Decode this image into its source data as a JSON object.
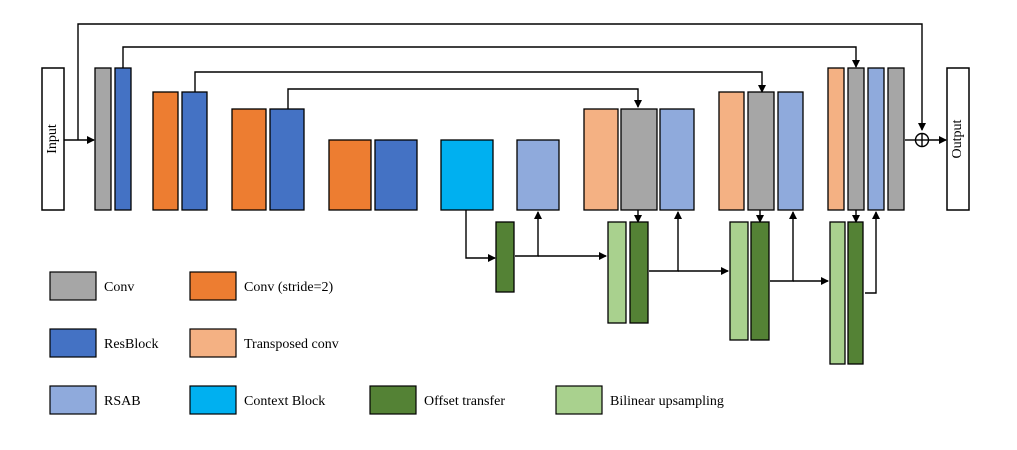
{
  "io": {
    "input": "Input",
    "output": "Output"
  },
  "colors": {
    "conv": "#a6a6a6",
    "conv_stride": "#ed7d31",
    "resblock": "#4472c4",
    "transposed": "#f4b183",
    "rsab": "#8faadc",
    "context": "#00b0f0",
    "offset": "#548235",
    "bilinear": "#a9d18e"
  },
  "legend": {
    "conv": "Conv",
    "conv_stride": "Conv (stride=2)",
    "resblock": "ResBlock",
    "transposed": "Transposed conv",
    "rsab": "RSAB",
    "context": "Context Block",
    "offset": "Offset transfer",
    "bilinear": "Bilinear upsampling"
  }
}
